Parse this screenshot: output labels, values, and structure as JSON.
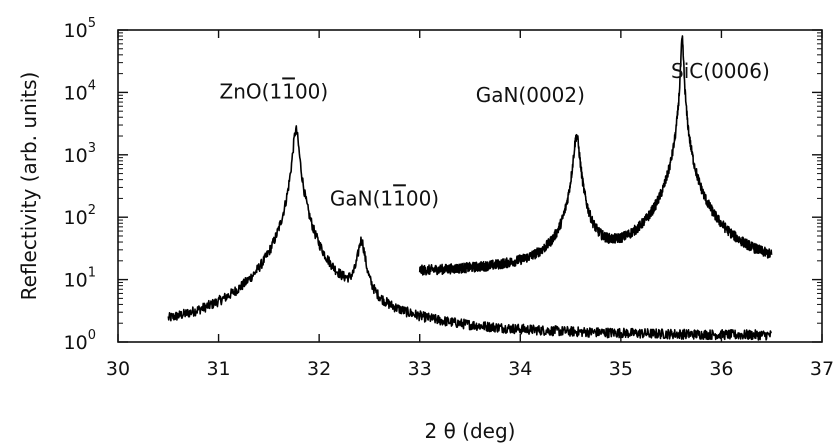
{
  "chart_data": {
    "type": "line",
    "title": "",
    "xlabel": "2 θ (deg)",
    "ylabel": "Reflectivity (arb. units)",
    "xlim": [
      30,
      37
    ],
    "ylim": [
      1,
      100000
    ],
    "y_scale": "log",
    "grid": false,
    "x_ticks": [
      "30",
      "31",
      "32",
      "33",
      "34",
      "35",
      "36",
      "37"
    ],
    "y_ticks": [
      {
        "base": "10",
        "exp": "0",
        "value": 1
      },
      {
        "base": "10",
        "exp": "1",
        "value": 10
      },
      {
        "base": "10",
        "exp": "2",
        "value": 100
      },
      {
        "base": "10",
        "exp": "3",
        "value": 1000
      },
      {
        "base": "10",
        "exp": "4",
        "value": 10000
      },
      {
        "base": "10",
        "exp": "5",
        "value": 100000
      }
    ],
    "series": [
      {
        "color": "#000000",
        "x_range": [
          30.5,
          36.5
        ],
        "baseline": 1.2,
        "peaks": [
          {
            "x": 31.77,
            "y": 2500,
            "width": 0.028
          },
          {
            "x": 32.42,
            "y": 38,
            "width": 0.035
          }
        ]
      },
      {
        "color": "#000000",
        "x_range": [
          33.0,
          36.5
        ],
        "baseline": 12,
        "peaks": [
          {
            "x": 34.56,
            "y": 2000,
            "width": 0.028
          },
          {
            "x": 35.61,
            "y": 70000,
            "width": 0.012
          }
        ]
      }
    ],
    "annotations": [
      {
        "text": "ZnO(1",
        "bar": "1",
        "tail": "00)",
        "x": 31.55,
        "y": 8000
      },
      {
        "text": "GaN(1",
        "bar": "1",
        "tail": "00)",
        "x": 32.65,
        "y": 155
      },
      {
        "text": "GaN(0002)",
        "bar": "",
        "tail": "",
        "x": 34.1,
        "y": 7000
      },
      {
        "text": "SiC(0006)",
        "bar": "",
        "tail": "",
        "x": 35.99,
        "y": 17000
      }
    ]
  }
}
